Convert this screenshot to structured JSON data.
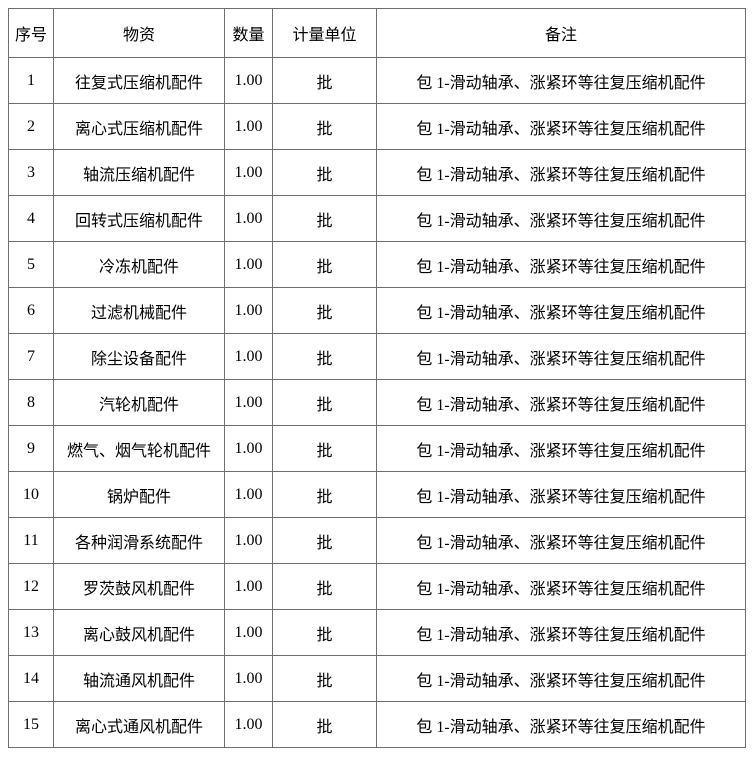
{
  "table": {
    "headers": [
      "序号",
      "物资",
      "数量",
      "计量单位",
      "备注"
    ],
    "rows": [
      {
        "no": "1",
        "material": "往复式压缩机配件",
        "qty": "1.00",
        "unit": "批",
        "remark": "包 1-滑动轴承、涨紧环等往复压缩机配件"
      },
      {
        "no": "2",
        "material": "离心式压缩机配件",
        "qty": "1.00",
        "unit": "批",
        "remark": "包 1-滑动轴承、涨紧环等往复压缩机配件"
      },
      {
        "no": "3",
        "material": "轴流压缩机配件",
        "qty": "1.00",
        "unit": "批",
        "remark": "包 1-滑动轴承、涨紧环等往复压缩机配件"
      },
      {
        "no": "4",
        "material": "回转式压缩机配件",
        "qty": "1.00",
        "unit": "批",
        "remark": "包 1-滑动轴承、涨紧环等往复压缩机配件"
      },
      {
        "no": "5",
        "material": "冷冻机配件",
        "qty": "1.00",
        "unit": "批",
        "remark": "包 1-滑动轴承、涨紧环等往复压缩机配件"
      },
      {
        "no": "6",
        "material": "过滤机械配件",
        "qty": "1.00",
        "unit": "批",
        "remark": "包 1-滑动轴承、涨紧环等往复压缩机配件"
      },
      {
        "no": "7",
        "material": "除尘设备配件",
        "qty": "1.00",
        "unit": "批",
        "remark": "包 1-滑动轴承、涨紧环等往复压缩机配件"
      },
      {
        "no": "8",
        "material": "汽轮机配件",
        "qty": "1.00",
        "unit": "批",
        "remark": "包 1-滑动轴承、涨紧环等往复压缩机配件"
      },
      {
        "no": "9",
        "material": "燃气、烟气轮机配件",
        "qty": "1.00",
        "unit": "批",
        "remark": "包 1-滑动轴承、涨紧环等往复压缩机配件"
      },
      {
        "no": "10",
        "material": "锅炉配件",
        "qty": "1.00",
        "unit": "批",
        "remark": "包 1-滑动轴承、涨紧环等往复压缩机配件"
      },
      {
        "no": "11",
        "material": "各种润滑系统配件",
        "qty": "1.00",
        "unit": "批",
        "remark": "包 1-滑动轴承、涨紧环等往复压缩机配件"
      },
      {
        "no": "12",
        "material": "罗茨鼓风机配件",
        "qty": "1.00",
        "unit": "批",
        "remark": "包 1-滑动轴承、涨紧环等往复压缩机配件"
      },
      {
        "no": "13",
        "material": "离心鼓风机配件",
        "qty": "1.00",
        "unit": "批",
        "remark": "包 1-滑动轴承、涨紧环等往复压缩机配件"
      },
      {
        "no": "14",
        "material": "轴流通风机配件",
        "qty": "1.00",
        "unit": "批",
        "remark": "包 1-滑动轴承、涨紧环等往复压缩机配件"
      },
      {
        "no": "15",
        "material": "离心式通风机配件",
        "qty": "1.00",
        "unit": "批",
        "remark": "包 1-滑动轴承、涨紧环等往复压缩机配件"
      }
    ]
  },
  "colors": {
    "border": "#6f6f6f",
    "text": "#000000",
    "background": "#ffffff"
  }
}
